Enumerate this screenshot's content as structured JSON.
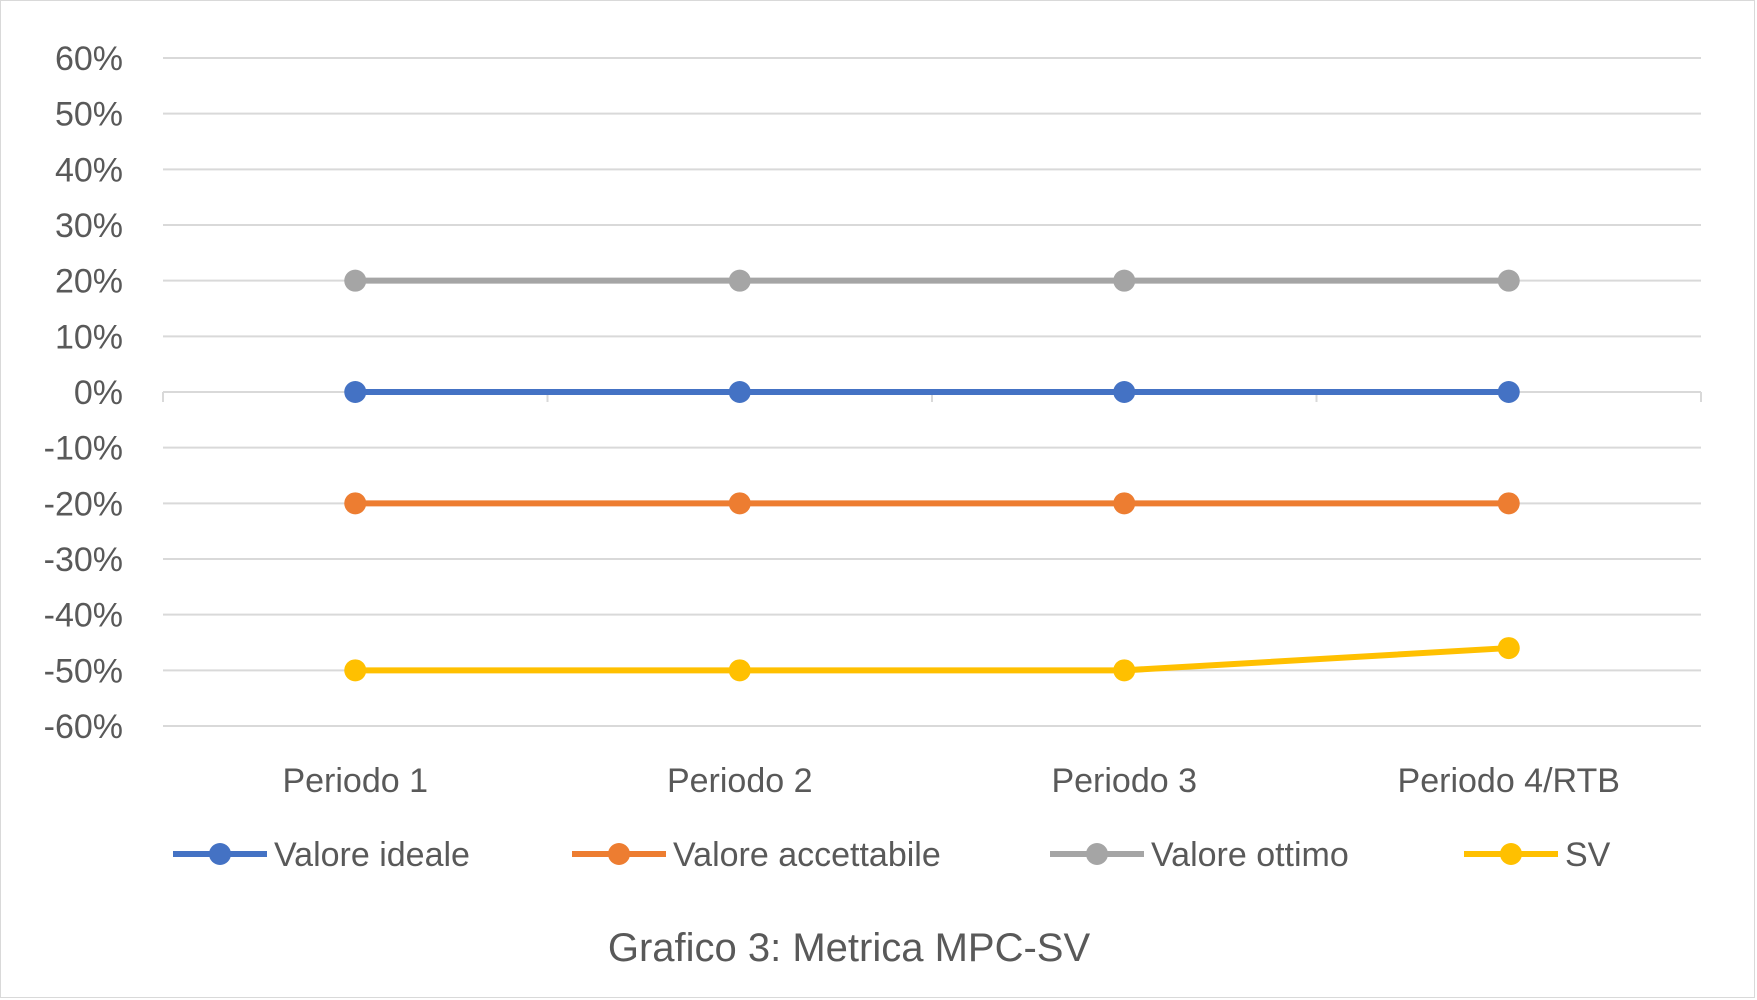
{
  "chart_data": {
    "type": "line",
    "categories": [
      "Periodo 1",
      "Periodo 2",
      "Periodo 3",
      "Periodo 4/RTB"
    ],
    "series": [
      {
        "name": "Valore ideale",
        "color": "#4472c4",
        "values": [
          0,
          0,
          0,
          0
        ]
      },
      {
        "name": "Valore accettabile",
        "color": "#ed7d31",
        "values": [
          -20,
          -20,
          -20,
          -20
        ]
      },
      {
        "name": "Valore ottimo",
        "color": "#a5a5a5",
        "values": [
          20,
          20,
          20,
          20
        ]
      },
      {
        "name": "SV",
        "color": "#ffc000",
        "values": [
          -50,
          -50,
          -50,
          -46
        ]
      }
    ],
    "ylim": [
      -60,
      60
    ],
    "yticks": [
      "60%",
      "50%",
      "40%",
      "30%",
      "20%",
      "10%",
      "0%",
      "-10%",
      "-20%",
      "-30%",
      "-40%",
      "-50%",
      "-60%"
    ],
    "grid": true,
    "legend_position": "bottom"
  },
  "caption": "Grafico 3: Metrica MPC-SV"
}
